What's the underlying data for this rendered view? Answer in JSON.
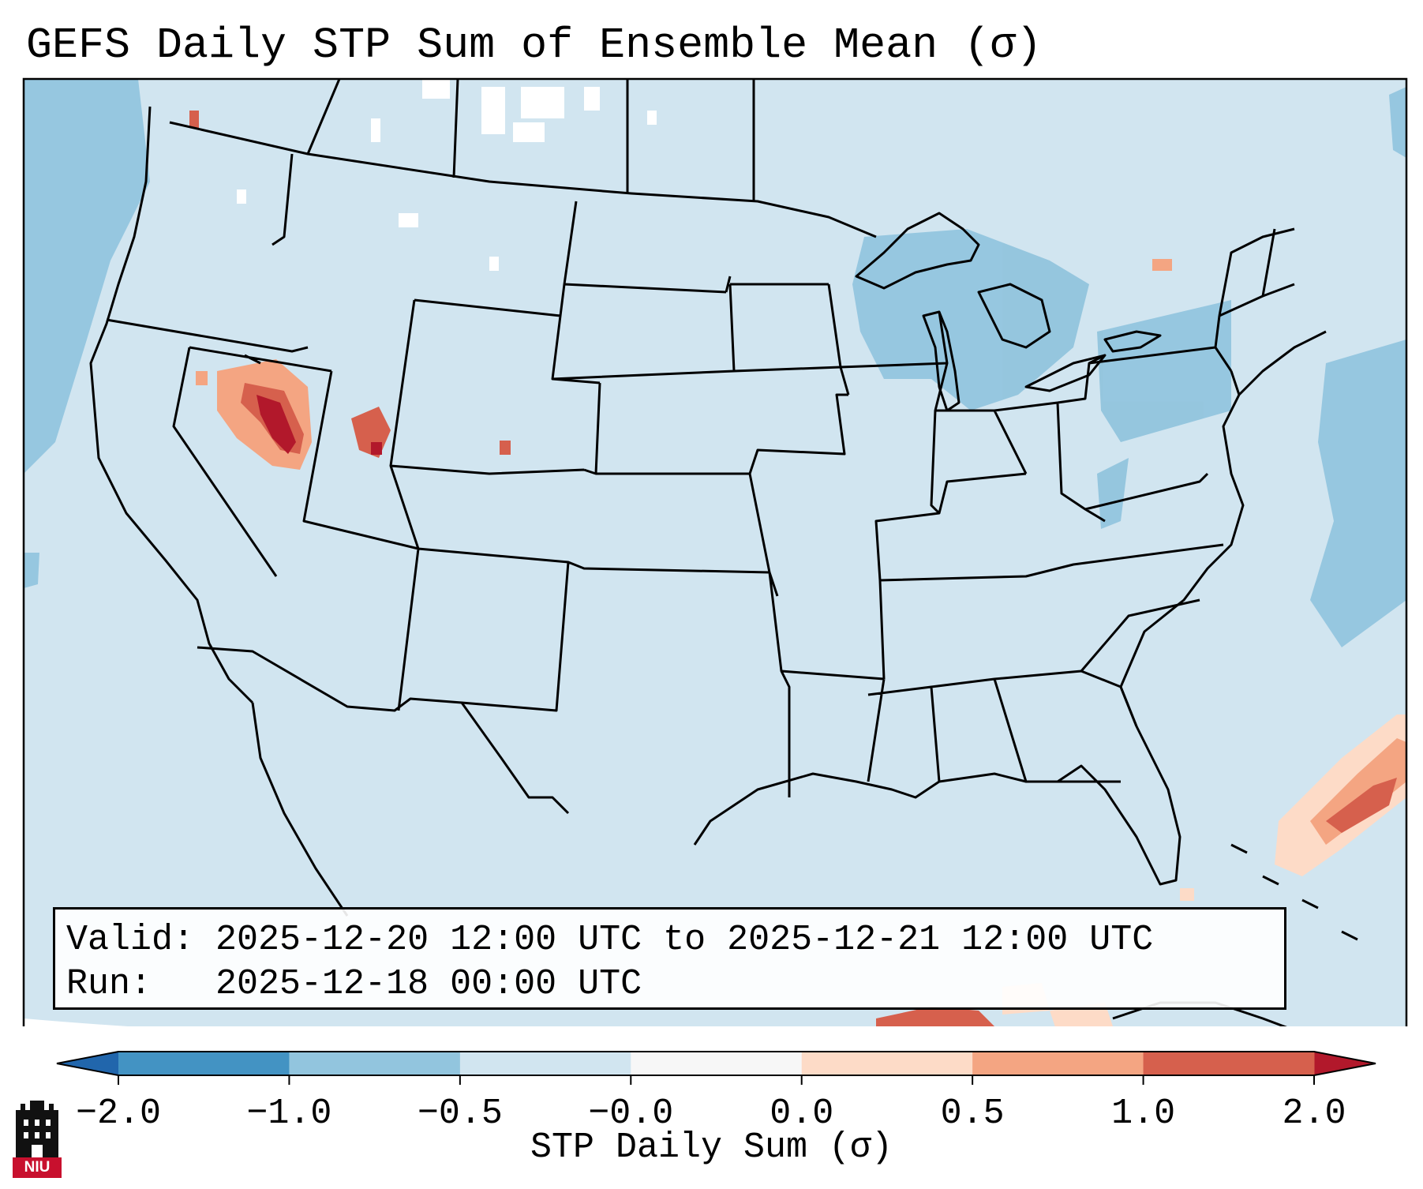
{
  "title": "GEFS Daily STP Sum of Ensemble Mean (σ)",
  "info": {
    "valid": "Valid: 2025-12-20 12:00 UTC to 2025-12-21 12:00 UTC",
    "run": "Run:   2025-12-18 00:00 UTC"
  },
  "colorbar": {
    "label": "STP Daily Sum (σ)",
    "ticks": [
      "−2.0",
      "−1.0",
      "−0.5",
      "−0.0",
      "0.0",
      "0.5",
      "1.0",
      "2.0"
    ],
    "colors": [
      "#2166ac",
      "#4393c3",
      "#92c5de",
      "#d1e5f0",
      "#fddbc7",
      "#f4a582",
      "#d6604d",
      "#b2182b"
    ],
    "extend_low_color": "#2166ac",
    "extend_high_color": "#b2182b"
  },
  "map": {
    "background_color": "#d1e5f0",
    "region": "Contiguous United States",
    "features": [
      "state-boundaries",
      "coastlines",
      "country-borders"
    ]
  },
  "logo": {
    "text": "NIU"
  }
}
